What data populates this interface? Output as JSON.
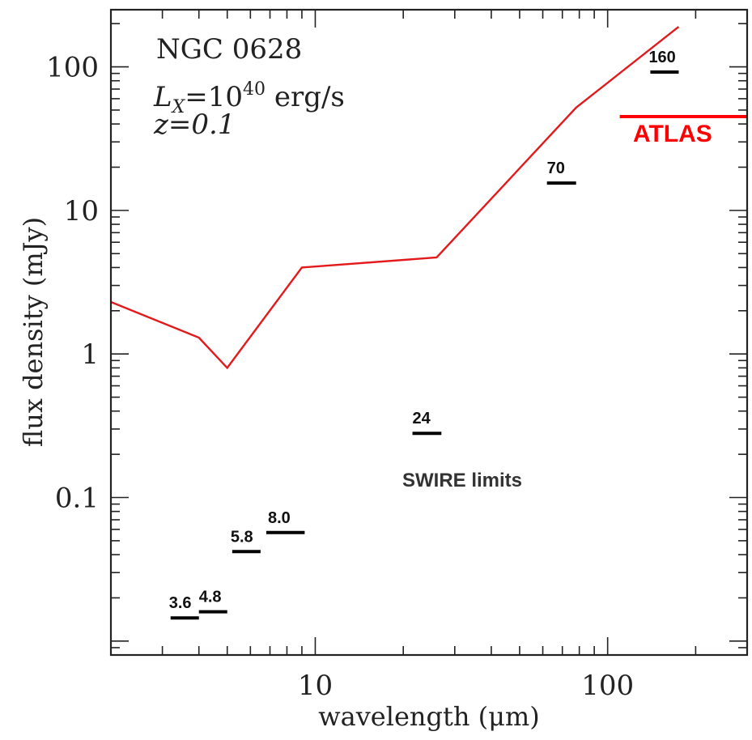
{
  "chart_data": {
    "type": "line",
    "title": "",
    "xlabel": "wavelength (μm)",
    "ylabel": "flux density (mJy)",
    "xscale": "log",
    "yscale": "log",
    "xlim": [
      2,
      300
    ],
    "ylim": [
      0.008,
      250
    ],
    "x_ticks": [
      10,
      100
    ],
    "x_tick_labels": [
      "10",
      "100"
    ],
    "y_ticks": [
      0.1,
      1,
      10,
      100
    ],
    "y_tick_labels": [
      "0.1",
      "1",
      "10",
      "100"
    ],
    "grid": false,
    "annotations": {
      "object": "NGC 0628",
      "luminosity_prefix": "L",
      "luminosity_sub": "X",
      "luminosity_eq": "=10",
      "luminosity_exp": "40",
      "luminosity_unit": " erg/s",
      "redshift": "z=0.1"
    },
    "model_series": {
      "color": "#e31a1c",
      "x": [
        2.0,
        4.0,
        5.0,
        9.0,
        26.0,
        78.0,
        175.0
      ],
      "y": [
        2.3,
        1.3,
        0.8,
        4.0,
        4.7,
        52.0,
        190.0
      ]
    },
    "swire_limits": {
      "label": "SWIRE limits",
      "color": "#000000",
      "bands": [
        {
          "label": "3.6",
          "x0": 3.2,
          "x1": 4.0,
          "y": 0.0145
        },
        {
          "label": "4.8",
          "x0": 4.0,
          "x1": 5.0,
          "y": 0.016
        },
        {
          "label": "5.8",
          "x0": 5.2,
          "x1": 6.5,
          "y": 0.042
        },
        {
          "label": "8.0",
          "x0": 6.8,
          "x1": 9.2,
          "y": 0.057
        },
        {
          "label": "24",
          "x0": 21.5,
          "x1": 27.0,
          "y": 0.28
        },
        {
          "label": "70",
          "x0": 62.0,
          "x1": 78.0,
          "y": 15.5
        },
        {
          "label": "160",
          "x0": 140.0,
          "x1": 175.0,
          "y": 92.0
        }
      ]
    },
    "atlas_limit": {
      "label": "ATLAS",
      "color": "#ff0000",
      "x0": 110.0,
      "x1": 300.0,
      "y": 45.0
    }
  }
}
